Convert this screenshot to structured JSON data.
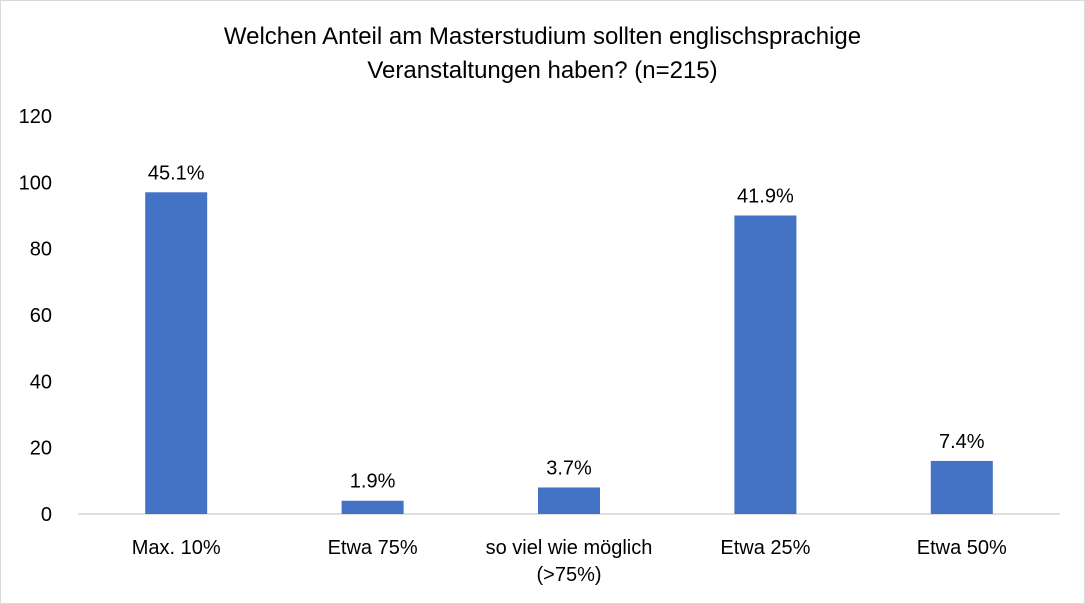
{
  "chart_data": {
    "type": "bar",
    "title_line1": "Welchen Anteil am Masterstudium sollten englischsprachige",
    "title_line2": "Veranstaltungen haben? (n=215)",
    "categories": [
      [
        "Max. 10%"
      ],
      [
        "Etwa 75%"
      ],
      [
        "so viel wie möglich",
        "(>75%)"
      ],
      [
        "Etwa 25%"
      ],
      [
        "Etwa 50%"
      ]
    ],
    "values": [
      97,
      4,
      8,
      90,
      16
    ],
    "data_labels": [
      "45.1%",
      "1.9%",
      "3.7%",
      "41.9%",
      "7.4%"
    ],
    "y_ticks": [
      "0",
      "20",
      "40",
      "60",
      "80",
      "100",
      "120"
    ],
    "ylim": [
      0,
      120
    ],
    "grid": false,
    "bar_color": "#4472c4",
    "axis_color": "#bfbfbf"
  }
}
